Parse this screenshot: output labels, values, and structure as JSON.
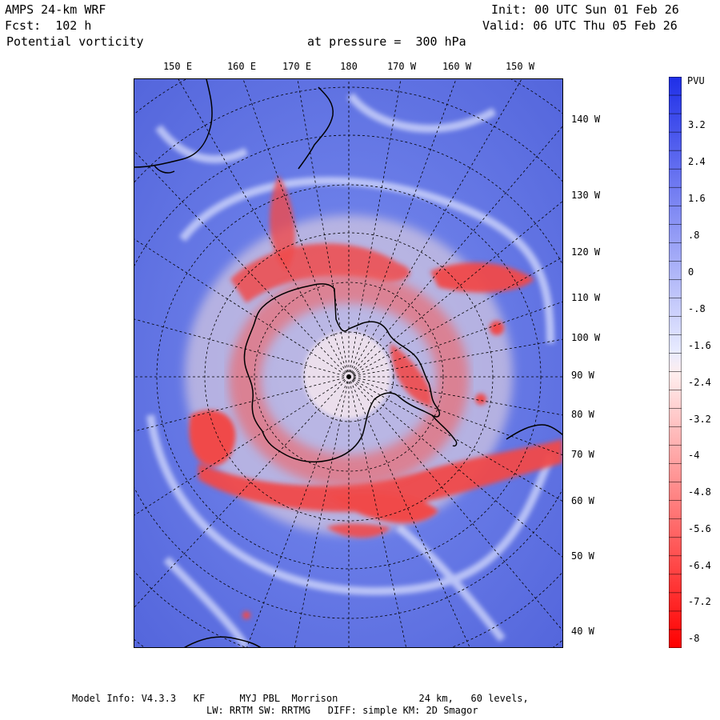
{
  "header": {
    "model": "AMPS 24-km WRF",
    "fcst": "Fcst:  102 h",
    "field": "Potential vorticity",
    "level": "at pressure =  300 hPa",
    "init": "Init: 00 UTC Sun 01 Feb 26",
    "valid": "Valid: 06 UTC Thu 05 Feb 26"
  },
  "lon_labels_top": [
    "150 E",
    "160 E",
    "170 E",
    "180",
    "170 W",
    "160 W",
    "150 W"
  ],
  "lon_labels_right": [
    "140 W",
    "130 W",
    "120 W",
    "110 W",
    "100 W",
    "90 W",
    "80 W",
    "70 W",
    "60 W",
    "50 W",
    "40 W"
  ],
  "colorbar": {
    "unit": "PVU",
    "labels": [
      "3.2",
      "2.4",
      "1.6",
      ".8",
      "0",
      "-.8",
      "-1.6",
      "-2.4",
      "-3.2",
      "-4",
      "-4.8",
      "-5.6",
      "-6.4",
      "-7.2",
      "-8"
    ],
    "high_color": "#1f2fe8",
    "mid_color": "#ffffff",
    "low_color": "#ff0000"
  },
  "footer": {
    "line1": "Model Info: V4.3.3   KF      MYJ PBL  Morrison              24 km,   60 levels,",
    "line2": "LW: RRTM SW: RRTMG   DIFF: simple KM: 2D Smagor"
  },
  "colors": {
    "ocean_pv": "#5b6fe0",
    "low_pv": "#ee2222",
    "coastline": "#000000"
  }
}
